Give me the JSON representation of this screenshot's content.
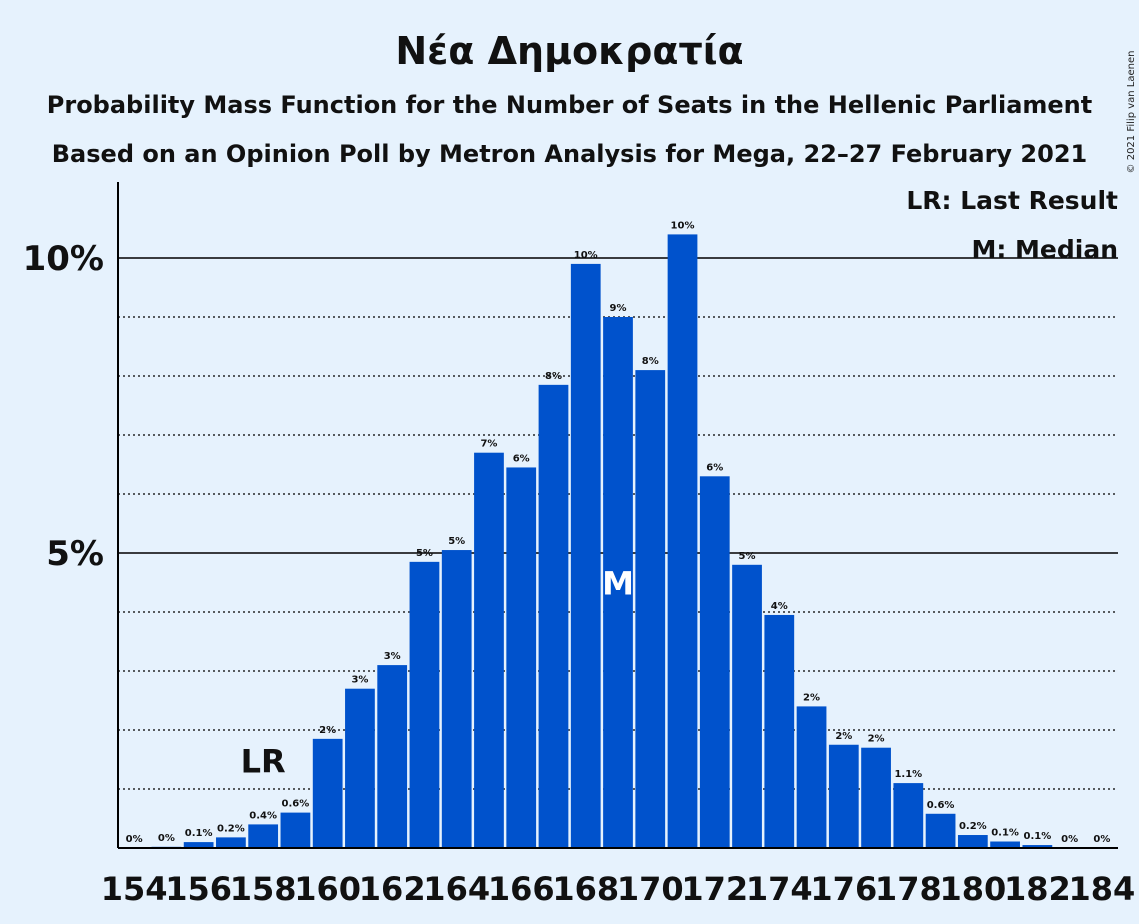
{
  "chart_data": {
    "type": "bar",
    "title": "Νέα Δημοκρατία",
    "subtitle": "Probability Mass Function for the Number of Seats in the Hellenic Parliament",
    "subtitle2": "Based on an Opinion Poll by Metron Analysis for Mega, 22–27 February 2021",
    "copyright": "© 2021 Filip van Laenen",
    "legend": {
      "lr": "LR: Last Result",
      "median": "M: Median",
      "placement": "top-right"
    },
    "y_ticks": [
      {
        "value": 5,
        "label": "5%"
      },
      {
        "value": 10,
        "label": "10%"
      }
    ],
    "ylim": [
      0,
      11.3
    ],
    "x_tick_labels": [
      "154",
      "156",
      "158",
      "160",
      "162",
      "164",
      "166",
      "168",
      "170",
      "172",
      "174",
      "176",
      "178",
      "180",
      "182",
      "184"
    ],
    "x": [
      154,
      155,
      156,
      157,
      158,
      159,
      160,
      161,
      162,
      163,
      164,
      165,
      166,
      167,
      168,
      169,
      170,
      171,
      172,
      173,
      174,
      175,
      176,
      177,
      178,
      179,
      180,
      181,
      182,
      183,
      184
    ],
    "values": [
      0.0,
      0.02,
      0.1,
      0.18,
      0.4,
      0.6,
      1.85,
      2.7,
      3.1,
      4.85,
      5.05,
      6.7,
      6.45,
      7.85,
      9.9,
      9.0,
      8.1,
      10.4,
      6.3,
      4.8,
      3.95,
      2.4,
      1.75,
      1.7,
      1.1,
      0.58,
      0.22,
      0.11,
      0.05,
      0.0,
      0.0
    ],
    "data_labels": [
      "0%",
      "0%",
      "0.1%",
      "0.2%",
      "0.4%",
      "0.6%",
      "2%",
      "3%",
      "3%",
      "5%",
      "5%",
      "7%",
      "6%",
      "8%",
      "10%",
      "9%",
      "8%",
      "10%",
      "6%",
      "5%",
      "4%",
      "2%",
      "2%",
      "2%",
      "1.1%",
      "0.6%",
      "0.2%",
      "0.1%",
      "0.1%",
      "0%",
      "0%"
    ],
    "last_result": {
      "seat": 158,
      "label": "LR"
    },
    "median": {
      "seat": 169,
      "label": "M"
    },
    "colors": {
      "bar": "#0052cc",
      "background": "#e6f2fd",
      "grid": "#000000",
      "text": "#111111"
    },
    "grid": true
  }
}
